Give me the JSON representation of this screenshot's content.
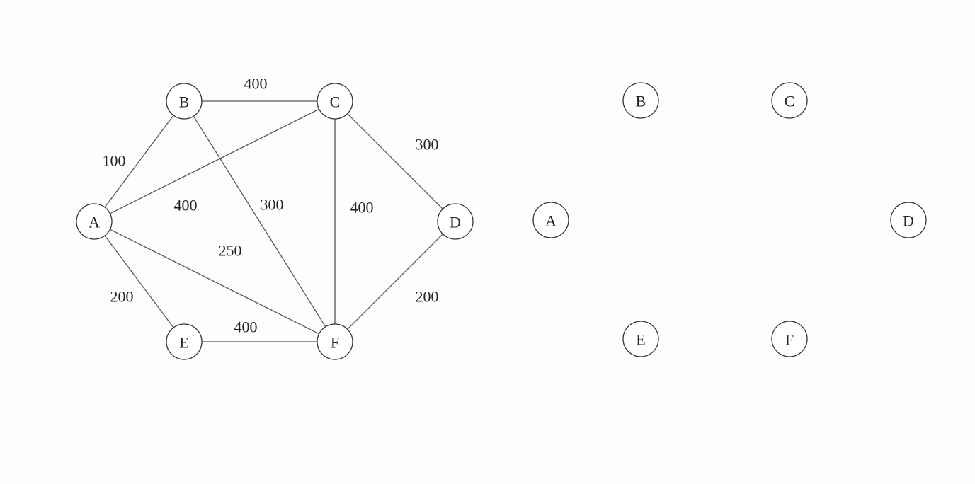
{
  "colors": {
    "background": "#fdfdfd",
    "edge": "#555555",
    "node_stroke": "#333333",
    "text": "#222222"
  },
  "weighted_graph": {
    "nodes": [
      {
        "id": "A",
        "label": "A"
      },
      {
        "id": "B",
        "label": "B"
      },
      {
        "id": "C",
        "label": "C"
      },
      {
        "id": "D",
        "label": "D"
      },
      {
        "id": "E",
        "label": "E"
      },
      {
        "id": "F",
        "label": "F"
      }
    ],
    "edges": [
      {
        "from": "B",
        "to": "C",
        "weight": "400"
      },
      {
        "from": "A",
        "to": "B",
        "weight": "100"
      },
      {
        "from": "A",
        "to": "C",
        "weight": "400"
      },
      {
        "from": "B",
        "to": "F",
        "weight": "300"
      },
      {
        "from": "C",
        "to": "F",
        "weight": "400"
      },
      {
        "from": "C",
        "to": "D",
        "weight": "300"
      },
      {
        "from": "A",
        "to": "F",
        "weight": "250"
      },
      {
        "from": "A",
        "to": "E",
        "weight": "200"
      },
      {
        "from": "E",
        "to": "F",
        "weight": "400"
      },
      {
        "from": "F",
        "to": "D",
        "weight": "200"
      }
    ]
  },
  "empty_graph": {
    "nodes": [
      {
        "id": "A",
        "label": "A"
      },
      {
        "id": "B",
        "label": "B"
      },
      {
        "id": "C",
        "label": "C"
      },
      {
        "id": "D",
        "label": "D"
      },
      {
        "id": "E",
        "label": "E"
      },
      {
        "id": "F",
        "label": "F"
      }
    ]
  }
}
